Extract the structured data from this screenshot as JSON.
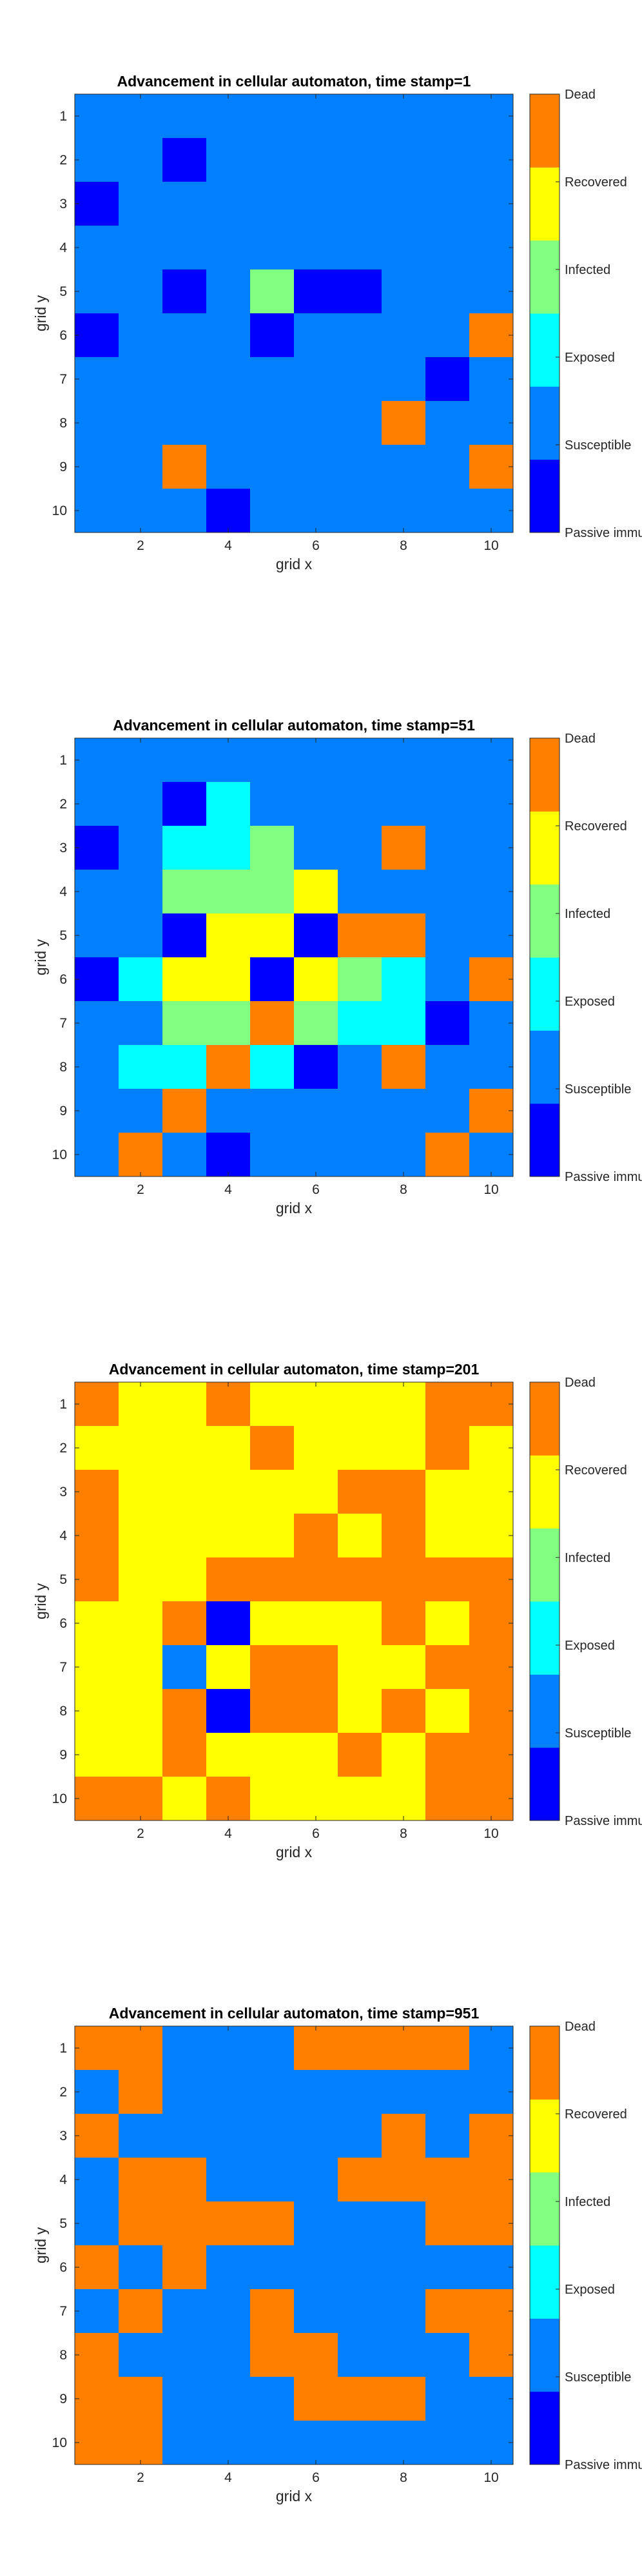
{
  "colors": {
    "Passive immunity": "#0000ff",
    "Susceptible": "#0080ff",
    "Exposed": "#00ffff",
    "Infected": "#80ff80",
    "Recovered": "#ffff00",
    "Dead": "#ff8000"
  },
  "chart_data": [
    {
      "type": "heatmap",
      "title": "Advancement in cellular automaton, time stamp=1",
      "xlabel": "grid x",
      "ylabel": "grid y",
      "xticks": [
        "2",
        "4",
        "6",
        "8",
        "10"
      ],
      "yticks": [
        "1",
        "2",
        "3",
        "4",
        "5",
        "6",
        "7",
        "8",
        "9",
        "10"
      ],
      "colorbar": [
        "Passive immunity",
        "Susceptible",
        "Exposed",
        "Infected",
        "Recovered",
        "Dead"
      ],
      "grid": [
        [
          "S",
          "S",
          "S",
          "S",
          "S",
          "S",
          "S",
          "S",
          "S",
          "S"
        ],
        [
          "S",
          "S",
          "P",
          "S",
          "S",
          "S",
          "S",
          "S",
          "S",
          "S"
        ],
        [
          "P",
          "S",
          "S",
          "S",
          "S",
          "S",
          "S",
          "S",
          "S",
          "S"
        ],
        [
          "S",
          "S",
          "S",
          "S",
          "S",
          "S",
          "S",
          "S",
          "S",
          "S"
        ],
        [
          "S",
          "S",
          "P",
          "S",
          "I",
          "P",
          "P",
          "S",
          "S",
          "S"
        ],
        [
          "P",
          "S",
          "S",
          "S",
          "P",
          "S",
          "S",
          "S",
          "S",
          "D"
        ],
        [
          "S",
          "S",
          "S",
          "S",
          "S",
          "S",
          "S",
          "S",
          "P",
          "S"
        ],
        [
          "S",
          "S",
          "S",
          "S",
          "S",
          "S",
          "S",
          "D",
          "S",
          "S"
        ],
        [
          "S",
          "S",
          "D",
          "S",
          "S",
          "S",
          "S",
          "S",
          "S",
          "D"
        ],
        [
          "S",
          "S",
          "S",
          "P",
          "S",
          "S",
          "S",
          "S",
          "S",
          "S"
        ]
      ]
    },
    {
      "type": "heatmap",
      "title": "Advancement in cellular automaton, time stamp=51",
      "xlabel": "grid x",
      "ylabel": "grid y",
      "xticks": [
        "2",
        "4",
        "6",
        "8",
        "10"
      ],
      "yticks": [
        "1",
        "2",
        "3",
        "4",
        "5",
        "6",
        "7",
        "8",
        "9",
        "10"
      ],
      "colorbar": [
        "Passive immunity",
        "Susceptible",
        "Exposed",
        "Infected",
        "Recovered",
        "Dead"
      ],
      "grid": [
        [
          "S",
          "S",
          "S",
          "S",
          "S",
          "S",
          "S",
          "S",
          "S",
          "S"
        ],
        [
          "S",
          "S",
          "P",
          "E",
          "S",
          "S",
          "S",
          "S",
          "S",
          "S"
        ],
        [
          "P",
          "S",
          "E",
          "E",
          "I",
          "S",
          "S",
          "D",
          "S",
          "S"
        ],
        [
          "S",
          "S",
          "I",
          "I",
          "I",
          "R",
          "S",
          "S",
          "S",
          "S"
        ],
        [
          "S",
          "S",
          "P",
          "R",
          "R",
          "P",
          "D",
          "D",
          "S",
          "S"
        ],
        [
          "P",
          "E",
          "R",
          "R",
          "P",
          "R",
          "I",
          "E",
          "S",
          "D"
        ],
        [
          "S",
          "S",
          "I",
          "I",
          "D",
          "I",
          "E",
          "E",
          "P",
          "S"
        ],
        [
          "S",
          "E",
          "E",
          "D",
          "E",
          "P",
          "S",
          "D",
          "S",
          "S"
        ],
        [
          "S",
          "S",
          "D",
          "S",
          "S",
          "S",
          "S",
          "S",
          "S",
          "D"
        ],
        [
          "S",
          "D",
          "S",
          "P",
          "S",
          "S",
          "S",
          "S",
          "D",
          "S"
        ]
      ]
    },
    {
      "type": "heatmap",
      "title": "Advancement in cellular automaton, time stamp=201",
      "xlabel": "grid x",
      "ylabel": "grid y",
      "xticks": [
        "2",
        "4",
        "6",
        "8",
        "10"
      ],
      "yticks": [
        "1",
        "2",
        "3",
        "4",
        "5",
        "6",
        "7",
        "8",
        "9",
        "10"
      ],
      "colorbar": [
        "Passive immunity",
        "Susceptible",
        "Exposed",
        "Infected",
        "Recovered",
        "Dead"
      ],
      "grid": [
        [
          "D",
          "R",
          "R",
          "D",
          "R",
          "R",
          "R",
          "R",
          "D",
          "D"
        ],
        [
          "R",
          "R",
          "R",
          "R",
          "D",
          "R",
          "R",
          "R",
          "D",
          "R"
        ],
        [
          "D",
          "R",
          "R",
          "R",
          "R",
          "R",
          "D",
          "D",
          "R",
          "R"
        ],
        [
          "D",
          "R",
          "R",
          "R",
          "R",
          "D",
          "R",
          "D",
          "R",
          "R"
        ],
        [
          "D",
          "R",
          "R",
          "D",
          "D",
          "D",
          "D",
          "D",
          "D",
          "D"
        ],
        [
          "R",
          "R",
          "D",
          "P",
          "R",
          "R",
          "R",
          "D",
          "R",
          "D"
        ],
        [
          "R",
          "R",
          "S",
          "R",
          "D",
          "D",
          "R",
          "R",
          "D",
          "D"
        ],
        [
          "R",
          "R",
          "D",
          "P",
          "D",
          "D",
          "R",
          "D",
          "R",
          "D"
        ],
        [
          "R",
          "R",
          "D",
          "R",
          "R",
          "R",
          "D",
          "R",
          "D",
          "D"
        ],
        [
          "D",
          "D",
          "R",
          "D",
          "R",
          "R",
          "R",
          "R",
          "D",
          "D"
        ]
      ]
    },
    {
      "type": "heatmap",
      "title": "Advancement in cellular automaton, time stamp=951",
      "xlabel": "grid x",
      "ylabel": "grid y",
      "xticks": [
        "2",
        "4",
        "6",
        "8",
        "10"
      ],
      "yticks": [
        "1",
        "2",
        "3",
        "4",
        "5",
        "6",
        "7",
        "8",
        "9",
        "10"
      ],
      "colorbar": [
        "Passive immunity",
        "Susceptible",
        "Exposed",
        "Infected",
        "Recovered",
        "Dead"
      ],
      "grid": [
        [
          "D",
          "D",
          "S",
          "S",
          "S",
          "D",
          "D",
          "D",
          "D",
          "S"
        ],
        [
          "S",
          "D",
          "S",
          "S",
          "S",
          "S",
          "S",
          "S",
          "S",
          "S"
        ],
        [
          "D",
          "S",
          "S",
          "S",
          "S",
          "S",
          "S",
          "D",
          "S",
          "D"
        ],
        [
          "S",
          "D",
          "D",
          "S",
          "S",
          "S",
          "D",
          "D",
          "D",
          "D"
        ],
        [
          "S",
          "D",
          "D",
          "D",
          "D",
          "S",
          "S",
          "S",
          "D",
          "D"
        ],
        [
          "D",
          "S",
          "D",
          "S",
          "S",
          "S",
          "S",
          "S",
          "S",
          "S"
        ],
        [
          "S",
          "D",
          "S",
          "S",
          "D",
          "S",
          "S",
          "S",
          "D",
          "D"
        ],
        [
          "D",
          "S",
          "S",
          "S",
          "D",
          "D",
          "S",
          "S",
          "S",
          "D"
        ],
        [
          "D",
          "D",
          "S",
          "S",
          "S",
          "D",
          "D",
          "D",
          "S",
          "S"
        ],
        [
          "D",
          "D",
          "S",
          "S",
          "S",
          "S",
          "S",
          "S",
          "S",
          "S"
        ]
      ]
    }
  ]
}
